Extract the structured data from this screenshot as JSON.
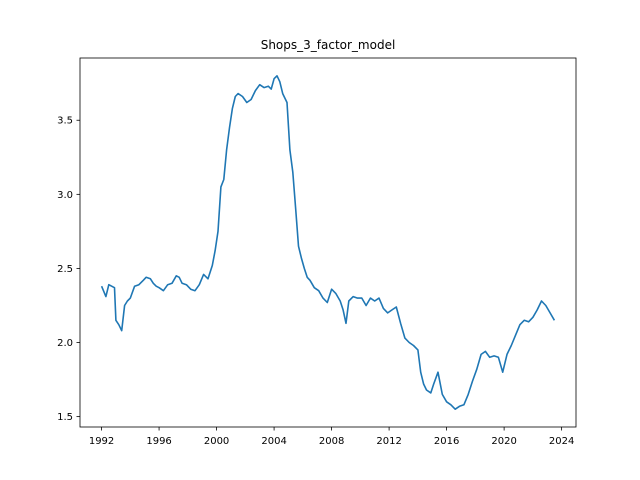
{
  "chart_data": {
    "type": "line",
    "title": "Shops_3_factor_model",
    "xlabel": "",
    "ylabel": "",
    "xlim": [
      1990.5,
      2025.0
    ],
    "ylim": [
      1.43,
      3.92
    ],
    "grid": false,
    "legend": "none",
    "x_ticks": [
      1992,
      1996,
      2000,
      2004,
      2008,
      2012,
      2016,
      2020,
      2024
    ],
    "y_ticks": [
      1.5,
      2.0,
      2.5,
      3.0,
      3.5
    ],
    "y_tick_labels": [
      "1.5",
      "2.0",
      "2.5",
      "3.0",
      "3.5"
    ],
    "series": [
      {
        "color": "#1f77b4",
        "x": [
          1992.0,
          1992.3,
          1992.5,
          1992.9,
          1993.0,
          1993.2,
          1993.4,
          1993.6,
          1993.8,
          1994.0,
          1994.3,
          1994.6,
          1994.9,
          1995.1,
          1995.4,
          1995.6,
          1995.8,
          1996.0,
          1996.3,
          1996.6,
          1996.9,
          1997.2,
          1997.4,
          1997.6,
          1997.9,
          1998.2,
          1998.5,
          1998.8,
          1999.1,
          1999.4,
          1999.7,
          1999.9,
          2000.1,
          2000.3,
          2000.5,
          2000.7,
          2000.9,
          2001.1,
          2001.3,
          2001.5,
          2001.8,
          2002.1,
          2002.4,
          2002.7,
          2003.0,
          2003.3,
          2003.6,
          2003.8,
          2004.0,
          2004.2,
          2004.4,
          2004.6,
          2004.9,
          2005.1,
          2005.3,
          2005.5,
          2005.7,
          2005.9,
          2006.1,
          2006.3,
          2006.5,
          2006.8,
          2007.1,
          2007.4,
          2007.7,
          2008.0,
          2008.3,
          2008.6,
          2008.8,
          2009.0,
          2009.2,
          2009.5,
          2009.8,
          2010.1,
          2010.4,
          2010.7,
          2011.0,
          2011.3,
          2011.6,
          2011.9,
          2012.2,
          2012.5,
          2012.8,
          2013.1,
          2013.4,
          2013.7,
          2014.0,
          2014.2,
          2014.4,
          2014.6,
          2014.9,
          2015.1,
          2015.4,
          2015.7,
          2016.0,
          2016.3,
          2016.6,
          2016.9,
          2017.2,
          2017.5,
          2017.8,
          2018.1,
          2018.4,
          2018.7,
          2019.0,
          2019.3,
          2019.6,
          2019.9,
          2020.2,
          2020.5,
          2020.8,
          2021.1,
          2021.4,
          2021.7,
          2022.0,
          2022.3,
          2022.6,
          2022.9,
          2023.2,
          2023.5
        ],
        "y": [
          2.38,
          2.31,
          2.39,
          2.37,
          2.15,
          2.12,
          2.08,
          2.25,
          2.28,
          2.3,
          2.38,
          2.39,
          2.42,
          2.44,
          2.43,
          2.4,
          2.38,
          2.37,
          2.35,
          2.39,
          2.4,
          2.45,
          2.44,
          2.4,
          2.39,
          2.36,
          2.35,
          2.39,
          2.46,
          2.43,
          2.52,
          2.62,
          2.75,
          3.05,
          3.1,
          3.3,
          3.45,
          3.58,
          3.66,
          3.68,
          3.66,
          3.62,
          3.64,
          3.7,
          3.74,
          3.72,
          3.73,
          3.71,
          3.78,
          3.8,
          3.76,
          3.68,
          3.62,
          3.3,
          3.15,
          2.9,
          2.65,
          2.57,
          2.5,
          2.44,
          2.42,
          2.37,
          2.35,
          2.3,
          2.27,
          2.36,
          2.33,
          2.28,
          2.22,
          2.13,
          2.28,
          2.31,
          2.3,
          2.3,
          2.25,
          2.3,
          2.28,
          2.3,
          2.23,
          2.2,
          2.22,
          2.24,
          2.13,
          2.03,
          2.0,
          1.98,
          1.95,
          1.8,
          1.72,
          1.68,
          1.66,
          1.72,
          1.8,
          1.65,
          1.6,
          1.58,
          1.55,
          1.57,
          1.58,
          1.65,
          1.74,
          1.82,
          1.92,
          1.94,
          1.9,
          1.91,
          1.9,
          1.8,
          1.92,
          1.98,
          2.05,
          2.12,
          2.15,
          2.14,
          2.17,
          2.22,
          2.28,
          2.25,
          2.2,
          2.15
        ]
      }
    ]
  }
}
